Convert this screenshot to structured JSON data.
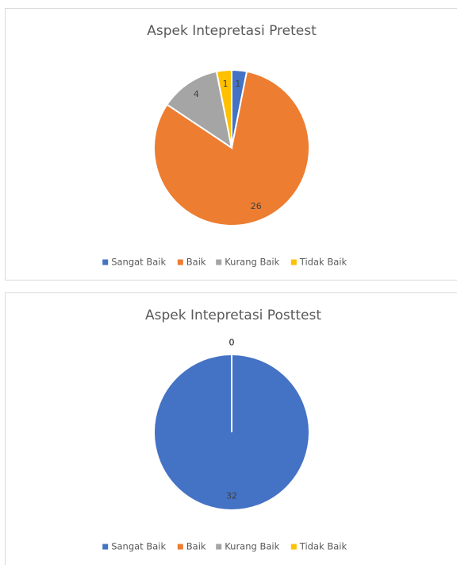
{
  "chart_data": [
    {
      "type": "pie",
      "title": "Aspek Intepretasi Pretest",
      "categories": [
        "Sangat Baik",
        "Baik",
        "Kurang Baik",
        "Tidak Baik"
      ],
      "values": [
        1,
        26,
        4,
        1
      ],
      "colors": [
        "#4472c4",
        "#ed7d31",
        "#a5a5a5",
        "#ffc000"
      ],
      "legend": "bottom"
    },
    {
      "type": "pie",
      "title": "Aspek Intepretasi Posttest",
      "categories": [
        "Sangat Baik",
        "Baik",
        "Kurang Baik",
        "Tidak Baik"
      ],
      "values": [
        32,
        0,
        0,
        0
      ],
      "colors": [
        "#4472c4",
        "#ed7d31",
        "#a5a5a5",
        "#ffc000"
      ],
      "legend": "bottom"
    }
  ]
}
